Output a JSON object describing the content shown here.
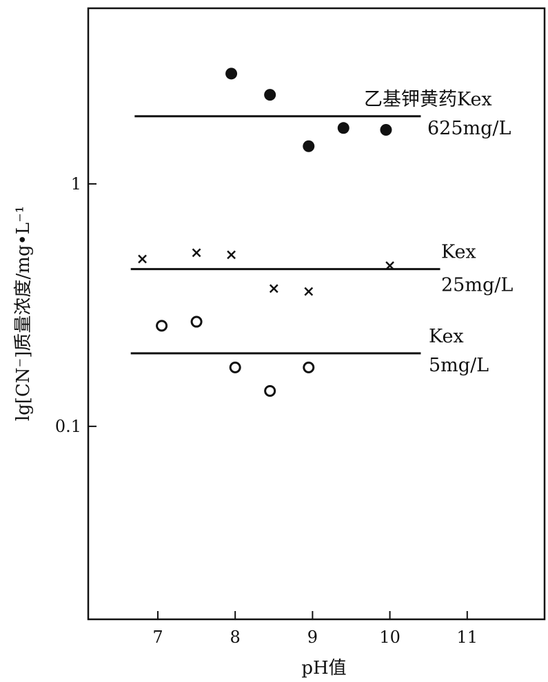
{
  "chart_data": {
    "type": "scatter",
    "title": "",
    "xlabel": "pH值",
    "ylabel": "lg[CN⁻]质量浓度/mg•L⁻¹",
    "x_ticks": [
      7,
      8,
      9,
      10,
      11
    ],
    "y_ticks": [
      {
        "value": 0.1,
        "label": "0.1"
      },
      {
        "value": 1,
        "label": "1"
      }
    ],
    "xlim": [
      6.1,
      12.0
    ],
    "ylim": [
      0.016,
      5.3
    ],
    "y_scale": "log",
    "grid": false,
    "series": [
      {
        "label_line1": "乙基钾黄药Kex",
        "label_line2": "625mg/L",
        "marker": "filled-circle",
        "points": [
          {
            "x": 7.95,
            "y": 2.85
          },
          {
            "x": 8.45,
            "y": 2.33
          },
          {
            "x": 8.95,
            "y": 1.43
          },
          {
            "x": 9.4,
            "y": 1.7
          },
          {
            "x": 9.95,
            "y": 1.67
          }
        ],
        "mean_line": {
          "x_start": 6.7,
          "x_end": 10.4,
          "y": 1.9
        }
      },
      {
        "label_line1": "Kex",
        "label_line2": "25mg/L",
        "marker": "cross",
        "points": [
          {
            "x": 6.8,
            "y": 0.49
          },
          {
            "x": 7.5,
            "y": 0.52
          },
          {
            "x": 7.95,
            "y": 0.51
          },
          {
            "x": 8.5,
            "y": 0.37
          },
          {
            "x": 8.95,
            "y": 0.36
          },
          {
            "x": 10.0,
            "y": 0.46
          }
        ],
        "mean_line": {
          "x_start": 6.65,
          "x_end": 10.65,
          "y": 0.445
        }
      },
      {
        "label_line1": "Kex",
        "label_line2": "5mg/L",
        "marker": "open-circle",
        "points": [
          {
            "x": 7.05,
            "y": 0.26
          },
          {
            "x": 7.5,
            "y": 0.27
          },
          {
            "x": 8.0,
            "y": 0.175
          },
          {
            "x": 8.45,
            "y": 0.14
          },
          {
            "x": 8.95,
            "y": 0.175
          }
        ],
        "mean_line": {
          "x_start": 6.65,
          "x_end": 10.4,
          "y": 0.2
        }
      }
    ]
  }
}
